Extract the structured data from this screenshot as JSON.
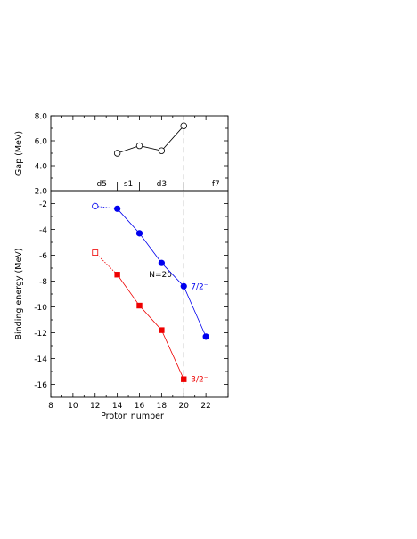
{
  "chart_data": [
    {
      "type": "line",
      "panel": "top",
      "title": "",
      "xlabel": "",
      "ylabel": "Gap (MeV)",
      "xlim": [
        8,
        24
      ],
      "ylim": [
        2.0,
        8.0
      ],
      "ytick_labels": [
        "2.0",
        "4.0",
        "6.0",
        "8.0"
      ],
      "series": [
        {
          "x": [
            14,
            16,
            18,
            20
          ],
          "values": [
            5.0,
            5.6,
            5.2,
            7.2
          ],
          "color": "#000000",
          "marker": "open-circle"
        }
      ],
      "shell_labels": [
        "d5",
        "s1",
        "d3",
        "f7"
      ],
      "vertical_line_x": 20
    },
    {
      "type": "line",
      "panel": "bottom",
      "title": "",
      "xlabel": "Proton number",
      "ylabel": "Binding energy (MeV)",
      "xlim": [
        8,
        24
      ],
      "ylim": [
        -17,
        -1
      ],
      "xtick_labels": [
        "8",
        "10",
        "12",
        "14",
        "16",
        "18",
        "20",
        "22"
      ],
      "ytick_labels": [
        "-2",
        "-4",
        "-6",
        "-8",
        "-10",
        "-12",
        "-14",
        "-16"
      ],
      "annotation": "N=20",
      "series": [
        {
          "name": "7/2⁻",
          "color": "#0000ee",
          "marker": "filled-circle",
          "x": [
            14,
            16,
            18,
            20,
            22
          ],
          "values": [
            -2.4,
            -4.3,
            -6.6,
            -8.4,
            -12.3
          ],
          "extrapolated": {
            "x": 12,
            "value": -2.2
          }
        },
        {
          "name": "3/2⁻",
          "color": "#ee0000",
          "marker": "filled-square",
          "x": [
            14,
            16,
            18,
            20
          ],
          "values": [
            -7.5,
            -9.9,
            -11.8,
            -15.6
          ],
          "extrapolated": {
            "x": 12,
            "value": -5.8
          }
        }
      ],
      "vertical_line_x": 20
    }
  ]
}
